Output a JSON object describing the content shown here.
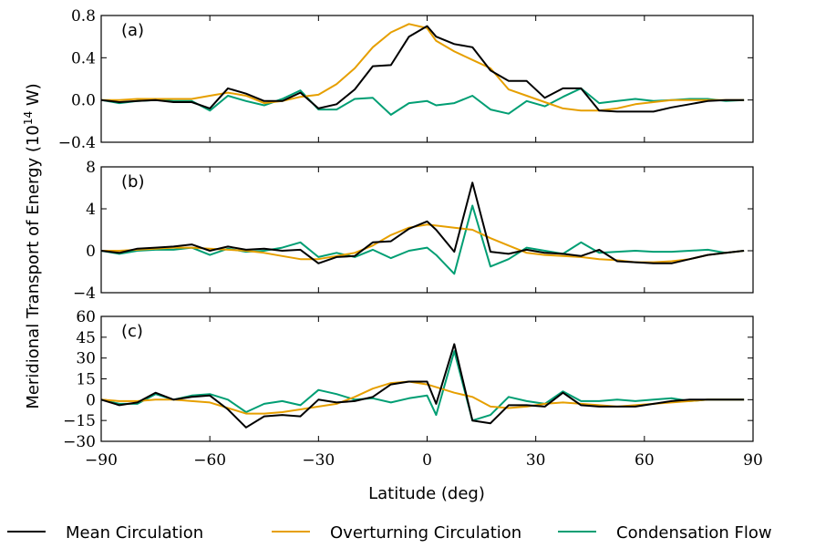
{
  "chart_data": {
    "type": "line",
    "ylabel_main": "Meridional Transport of Energy (",
    "ylabel_sup": "14",
    "ylabel_base": "10",
    "ylabel_end": " W)",
    "xlabel": "Latitude (deg)",
    "xlim": [
      -90,
      90
    ],
    "xticks": [
      -90,
      -60,
      -30,
      0,
      30,
      60,
      90
    ],
    "xtick_labels": [
      "−90",
      "−60",
      "−30",
      "0",
      "30",
      "60",
      "90"
    ],
    "x": [
      -90,
      -85,
      -80,
      -75,
      -70,
      -65,
      -60,
      -55,
      -50,
      -45,
      -40,
      -35,
      -30,
      -25,
      -20,
      -15,
      -10,
      -5,
      0,
      2.5,
      7.5,
      12.5,
      17.5,
      22.5,
      27.5,
      32.5,
      37.5,
      42.5,
      47.5,
      52.5,
      57.5,
      62.5,
      67.5,
      72.5,
      77.5,
      82.5,
      87.5
    ],
    "legend": {
      "placement": "bottom",
      "entries": [
        {
          "label": "Mean Circulation",
          "color": "#000000"
        },
        {
          "label": "Overturning Circulation",
          "color": "#e69f00"
        },
        {
          "label": "Condensation Flow",
          "color": "#009e73"
        }
      ]
    },
    "panels": [
      {
        "label": "(a)",
        "ylim": [
          -0.4,
          0.8
        ],
        "yticks": [
          -0.4,
          0.0,
          0.4,
          0.8
        ],
        "ytick_labels": [
          "−0.4",
          "0.0",
          "0.4",
          "0.8"
        ],
        "series": [
          {
            "name": "Mean Circulation",
            "color": "#000000",
            "values": [
              0.0,
              -0.02,
              -0.01,
              0.0,
              -0.02,
              -0.02,
              -0.08,
              0.11,
              0.06,
              -0.01,
              -0.01,
              0.07,
              -0.08,
              -0.04,
              0.1,
              0.32,
              0.33,
              0.6,
              0.7,
              0.6,
              0.53,
              0.5,
              0.28,
              0.18,
              0.18,
              0.02,
              0.11,
              0.11,
              -0.1,
              -0.11,
              -0.11,
              -0.11,
              -0.07,
              -0.04,
              -0.01,
              0.0,
              0.0
            ]
          },
          {
            "name": "Overturning Circulation",
            "color": "#e69f00",
            "values": [
              0.0,
              0.0,
              0.01,
              0.01,
              0.01,
              0.01,
              0.04,
              0.07,
              0.04,
              -0.03,
              -0.01,
              0.03,
              0.05,
              0.15,
              0.3,
              0.5,
              0.64,
              0.72,
              0.68,
              0.56,
              0.46,
              0.38,
              0.3,
              0.1,
              0.04,
              -0.02,
              -0.08,
              -0.1,
              -0.1,
              -0.08,
              -0.04,
              -0.02,
              0.0,
              0.0,
              0.0,
              0.0,
              0.0
            ]
          },
          {
            "name": "Condensation Flow",
            "color": "#009e73",
            "values": [
              0.0,
              -0.03,
              -0.01,
              0.0,
              -0.01,
              -0.01,
              -0.1,
              0.04,
              -0.01,
              -0.05,
              0.01,
              0.09,
              -0.09,
              -0.09,
              0.01,
              0.02,
              -0.14,
              -0.03,
              -0.01,
              -0.05,
              -0.03,
              0.04,
              -0.09,
              -0.13,
              -0.01,
              -0.06,
              0.03,
              0.11,
              -0.03,
              -0.01,
              0.01,
              -0.01,
              0.0,
              0.01,
              0.01,
              -0.01,
              0.0
            ]
          }
        ]
      },
      {
        "label": "(b)",
        "ylim": [
          -4,
          8
        ],
        "yticks": [
          -4,
          0,
          4,
          8
        ],
        "ytick_labels": [
          "−4",
          "0",
          "4",
          "8"
        ],
        "series": [
          {
            "name": "Mean Circulation",
            "color": "#000000",
            "values": [
              0.0,
              -0.2,
              0.2,
              0.3,
              0.4,
              0.6,
              0.0,
              0.4,
              0.1,
              0.2,
              0.0,
              0.1,
              -1.2,
              -0.6,
              -0.5,
              0.8,
              0.9,
              2.1,
              2.8,
              2.0,
              -0.1,
              6.5,
              -0.1,
              -0.3,
              0.1,
              -0.2,
              -0.3,
              -0.5,
              0.1,
              -1.0,
              -1.1,
              -1.2,
              -1.2,
              -0.8,
              -0.4,
              -0.2,
              0.0
            ]
          },
          {
            "name": "Overturning Circulation",
            "color": "#e69f00",
            "values": [
              0.0,
              0.0,
              0.1,
              0.2,
              0.3,
              0.3,
              0.2,
              0.1,
              0.0,
              -0.2,
              -0.5,
              -0.8,
              -0.8,
              -0.5,
              -0.2,
              0.5,
              1.5,
              2.2,
              2.5,
              2.4,
              2.2,
              2.0,
              1.2,
              0.5,
              -0.2,
              -0.4,
              -0.5,
              -0.6,
              -0.8,
              -0.9,
              -1.1,
              -1.1,
              -1.0,
              -0.8,
              -0.4,
              -0.2,
              0.0
            ]
          },
          {
            "name": "Condensation Flow",
            "color": "#009e73",
            "values": [
              0.0,
              -0.3,
              0.0,
              0.1,
              0.1,
              0.3,
              -0.4,
              0.2,
              -0.1,
              0.0,
              0.3,
              0.8,
              -0.6,
              -0.2,
              -0.6,
              0.1,
              -0.7,
              0.0,
              0.3,
              -0.4,
              -2.2,
              4.3,
              -1.5,
              -0.8,
              0.3,
              0.0,
              -0.3,
              0.8,
              -0.2,
              -0.1,
              0.0,
              -0.1,
              -0.1,
              0.0,
              0.1,
              -0.2,
              0.0
            ]
          }
        ]
      },
      {
        "label": "(c)",
        "ylim": [
          -30,
          60
        ],
        "yticks": [
          -30,
          -15,
          0,
          15,
          30,
          45,
          60
        ],
        "ytick_labels": [
          "−30",
          "−15",
          "0",
          "15",
          "30",
          "45",
          "60"
        ],
        "series": [
          {
            "name": "Mean Circulation",
            "color": "#000000",
            "values": [
              0,
              -4,
              -2,
              5,
              0,
              2,
              3,
              -7,
              -20,
              -12,
              -11,
              -12,
              0,
              -2,
              -1,
              2,
              11,
              13,
              13,
              -3,
              40,
              -15,
              -17,
              -4,
              -4,
              -5,
              5,
              -4,
              -5,
              -5,
              -5,
              -3,
              -1,
              0,
              0,
              0,
              0
            ]
          },
          {
            "name": "Overturning Circulation",
            "color": "#e69f00",
            "values": [
              0,
              -1,
              -1,
              0,
              0,
              -1,
              -2,
              -6,
              -10,
              -10,
              -9,
              -7,
              -5,
              -3,
              2,
              8,
              12,
              13,
              11,
              9,
              5,
              2,
              -5,
              -6,
              -5,
              -3,
              -2,
              -3,
              -4,
              -5,
              -4,
              -3,
              -2,
              -1,
              0,
              0,
              0
            ]
          },
          {
            "name": "Condensation Flow",
            "color": "#009e73",
            "values": [
              0,
              -3,
              -3,
              4,
              0,
              3,
              4,
              0,
              -9,
              -3,
              -1,
              -4,
              7,
              4,
              0,
              1,
              -2,
              1,
              3,
              -11,
              35,
              -15,
              -11,
              2,
              -1,
              -3,
              6,
              -1,
              -1,
              0,
              -1,
              0,
              1,
              -1,
              0,
              0,
              0
            ]
          }
        ]
      }
    ]
  }
}
